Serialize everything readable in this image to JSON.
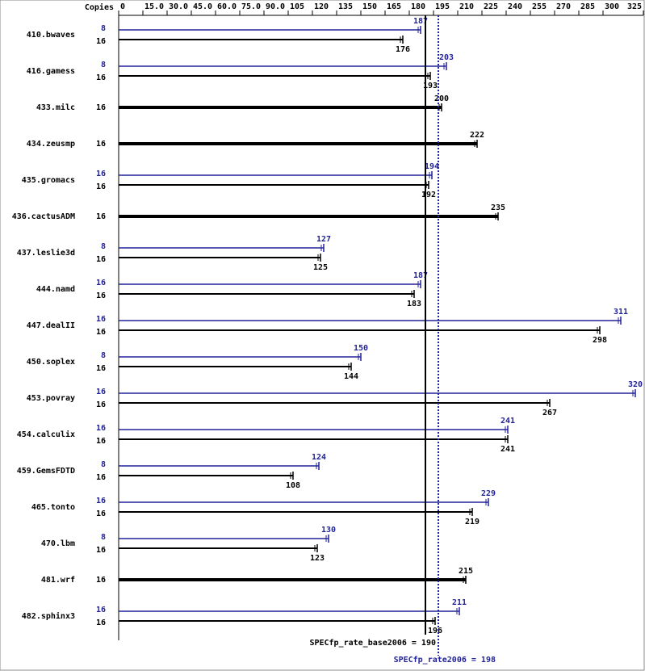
{
  "chart_data": {
    "type": "bar",
    "orientation": "horizontal",
    "copies_header": "Copies",
    "categories": [
      "410.bwaves",
      "416.gamess",
      "433.milc",
      "434.zeusmp",
      "435.gromacs",
      "436.cactusADM",
      "437.leslie3d",
      "444.namd",
      "447.dealII",
      "450.soplex",
      "453.povray",
      "454.calculix",
      "459.GemsFDTD",
      "465.tonto",
      "470.lbm",
      "481.wrf",
      "482.sphinx3"
    ],
    "series": [
      {
        "name": "peak",
        "color": "#191970",
        "copies": [
          8,
          8,
          null,
          null,
          16,
          null,
          8,
          16,
          16,
          8,
          16,
          16,
          8,
          16,
          8,
          null,
          16
        ],
        "values": [
          187,
          203,
          null,
          null,
          194,
          null,
          127,
          187,
          311,
          150,
          320,
          241,
          124,
          229,
          130,
          null,
          211
        ]
      },
      {
        "name": "base",
        "color": "#000000",
        "copies": [
          16,
          16,
          16,
          16,
          16,
          16,
          16,
          16,
          16,
          16,
          16,
          16,
          16,
          16,
          16,
          16,
          16
        ],
        "values": [
          176,
          193,
          200,
          222,
          192,
          235,
          125,
          183,
          298,
          144,
          267,
          241,
          108,
          219,
          123,
          215,
          196
        ]
      }
    ],
    "xlim": [
      0,
      325
    ],
    "xticks": [
      0,
      {
        "value": 15,
        "label": "15.0"
      },
      {
        "value": 30,
        "label": "30.0"
      },
      {
        "value": 45,
        "label": "45.0"
      },
      {
        "value": 60,
        "label": "60.0"
      },
      {
        "value": 75,
        "label": "75.0"
      },
      {
        "value": 90,
        "label": "90.0"
      },
      105,
      120,
      135,
      150,
      165,
      180,
      195,
      210,
      225,
      240,
      255,
      270,
      285,
      300,
      325
    ],
    "base_metric": {
      "value": 190,
      "label": "SPECfp_rate_base2006 = 190"
    },
    "peak_metric": {
      "value": 198,
      "label": "SPECfp_rate2006 = 198"
    }
  }
}
